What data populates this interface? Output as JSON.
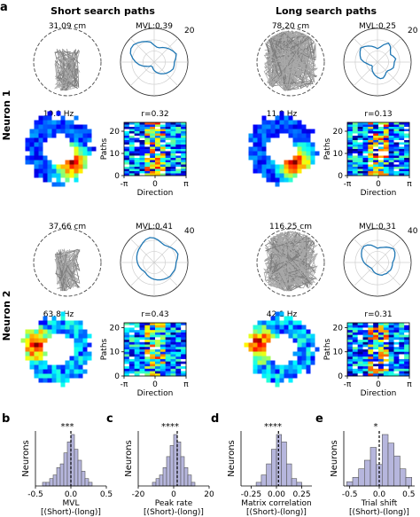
{
  "figure": {
    "panel_labels": [
      "a",
      "b",
      "c",
      "d",
      "e"
    ],
    "column_titles": [
      "Short search paths",
      "Long search paths"
    ],
    "row_titles": [
      "Neuron 1",
      "Neuron 2"
    ],
    "path_axis_label": "Paths",
    "direction_axis_label": "Direction",
    "direction_ticks": [
      "-π",
      "0",
      "π"
    ],
    "path_ticks": [
      "0",
      "10",
      "20"
    ],
    "histogram_ylabel": "Neurons"
  },
  "chart_data": [
    {
      "type": "polar",
      "neuron": "Neuron 1",
      "group": "Short search paths",
      "path_length_label": "31.09 cm",
      "mvl_label": "MVL:0.39",
      "radial_max_label": "20",
      "radial_max": 20,
      "profile": [
        12,
        13,
        14,
        13,
        12,
        11,
        10,
        9,
        9,
        10,
        12,
        13,
        14,
        15,
        16,
        16,
        15,
        13,
        11,
        9,
        7,
        5,
        4,
        3,
        3,
        3,
        4,
        5,
        6,
        7,
        8,
        9,
        10,
        11,
        12,
        12
      ],
      "line_color": "#1f77b4"
    },
    {
      "type": "polar",
      "neuron": "Neuron 1",
      "group": "Long search paths",
      "path_length_label": "78.20 cm",
      "mvl_label": "MVL:0.25",
      "radial_max_label": "20",
      "radial_max": 20,
      "profile": [
        10,
        11,
        10,
        9,
        10,
        12,
        13,
        11,
        9,
        8,
        9,
        10,
        11,
        12,
        13,
        12,
        11,
        10,
        8,
        6,
        5,
        4,
        4,
        5,
        6,
        7,
        8,
        9,
        10,
        10,
        9,
        8,
        8,
        9,
        10,
        10
      ],
      "line_color": "#1f77b4"
    },
    {
      "type": "polar",
      "neuron": "Neuron 2",
      "group": "Short search paths",
      "path_length_label": "37.66 cm",
      "mvl_label": "MVL:0.41",
      "radial_max_label": "40",
      "radial_max": 40,
      "profile": [
        26,
        28,
        30,
        29,
        27,
        25,
        24,
        25,
        27,
        29,
        30,
        29,
        27,
        25,
        24,
        23,
        22,
        21,
        20,
        19,
        18,
        17,
        16,
        16,
        17,
        18,
        19,
        20,
        21,
        22,
        23,
        24,
        25,
        25,
        26,
        26
      ],
      "line_color": "#1f77b4"
    },
    {
      "type": "polar",
      "neuron": "Neuron 2",
      "group": "Long search paths",
      "path_length_label": "116.25 cm",
      "mvl_label": "MVL:0.31",
      "radial_max_label": "40",
      "radial_max": 40,
      "profile": [
        18,
        20,
        22,
        24,
        25,
        23,
        21,
        19,
        18,
        17,
        19,
        22,
        24,
        25,
        24,
        22,
        20,
        18,
        16,
        14,
        12,
        11,
        10,
        10,
        11,
        12,
        13,
        14,
        15,
        16,
        16,
        17,
        17,
        18,
        18,
        18
      ],
      "line_color": "#1f77b4"
    },
    {
      "type": "heatmap",
      "neuron": "Neuron 1",
      "group": "Short search paths",
      "peak_rate_label": "19.0 Hz",
      "r_label": "r=0.32",
      "paths": 24,
      "direction_bins": 12
    },
    {
      "type": "heatmap",
      "neuron": "Neuron 1",
      "group": "Long search paths",
      "peak_rate_label": "11.9 Hz",
      "r_label": "r=0.13",
      "paths": 24,
      "direction_bins": 12
    },
    {
      "type": "heatmap",
      "neuron": "Neuron 2",
      "group": "Short search paths",
      "peak_rate_label": "63.8 Hz",
      "r_label": "r=0.43",
      "paths": 22,
      "direction_bins": 12
    },
    {
      "type": "heatmap",
      "neuron": "Neuron 2",
      "group": "Long search paths",
      "peak_rate_label": "42.1 Hz",
      "r_label": "r=0.31",
      "paths": 22,
      "direction_bins": 12
    },
    {
      "type": "bar",
      "panel": "b",
      "xlabel": "MVL",
      "xlabel2": "[(Short)-(long)]",
      "significance": "***",
      "ylabel": "Neurons",
      "xlim": [
        -0.5,
        0.5
      ],
      "x_ticks": [
        "-0.5",
        "0.0",
        "0.5"
      ],
      "x_tick_values": [
        -0.5,
        0.0,
        0.5
      ],
      "bin_edges": [
        -0.4,
        -0.35,
        -0.3,
        -0.25,
        -0.2,
        -0.15,
        -0.1,
        -0.05,
        0.0,
        0.05,
        0.1,
        0.15,
        0.2,
        0.25,
        0.3
      ],
      "counts": [
        1,
        1,
        2,
        3,
        5,
        6,
        9,
        12,
        14,
        10,
        7,
        4,
        2,
        1
      ],
      "mean": 0.0,
      "bar_color": "#b6b6dd"
    },
    {
      "type": "bar",
      "panel": "c",
      "xlabel": "Peak rate",
      "xlabel2": "[(Short)-(long)]",
      "significance": "****",
      "ylabel": "Neurons",
      "xlim": [
        -20,
        20
      ],
      "x_ticks": [
        "-20",
        "0",
        "20"
      ],
      "x_tick_values": [
        -20,
        0,
        20
      ],
      "bin_edges": [
        -12,
        -10,
        -8,
        -6,
        -4,
        -2,
        0,
        2,
        4,
        6,
        8,
        10,
        12
      ],
      "counts": [
        1,
        2,
        3,
        5,
        8,
        11,
        14,
        12,
        8,
        5,
        3,
        1
      ],
      "mean": 2,
      "bar_color": "#b6b6dd"
    },
    {
      "type": "bar",
      "panel": "d",
      "xlabel": "Matrix correlation",
      "xlabel2": "[(Short)-(long)]",
      "significance": "****",
      "ylabel": "Neurons",
      "xlim": [
        -0.35,
        0.35
      ],
      "x_ticks": [
        "-0.25",
        "0.00",
        "0.25"
      ],
      "x_tick_values": [
        -0.25,
        0.0,
        0.25
      ],
      "bin_edges": [
        -0.2,
        -0.15,
        -0.1,
        -0.05,
        0.0,
        0.05,
        0.1,
        0.15,
        0.2,
        0.25
      ],
      "counts": [
        1,
        3,
        6,
        10,
        14,
        12,
        6,
        2,
        1
      ],
      "mean": 0.02,
      "bar_color": "#b6b6dd"
    },
    {
      "type": "bar",
      "panel": "e",
      "xlabel": "Trial shift",
      "xlabel2": "[(Short)-(long)]",
      "significance": "*",
      "ylabel": "Neurons",
      "xlim": [
        -0.6,
        0.6
      ],
      "x_ticks": [
        "-0.5",
        "0.0",
        "0.5"
      ],
      "x_tick_values": [
        -0.5,
        0.0,
        0.5
      ],
      "bin_edges": [
        -0.55,
        -0.45,
        -0.35,
        -0.25,
        -0.15,
        -0.05,
        0.05,
        0.15,
        0.25,
        0.35,
        0.45,
        0.55
      ],
      "counts": [
        1,
        2,
        4,
        6,
        9,
        5,
        12,
        10,
        7,
        4,
        2
      ],
      "mean": 0.0,
      "bar_color": "#b6b6dd"
    }
  ]
}
